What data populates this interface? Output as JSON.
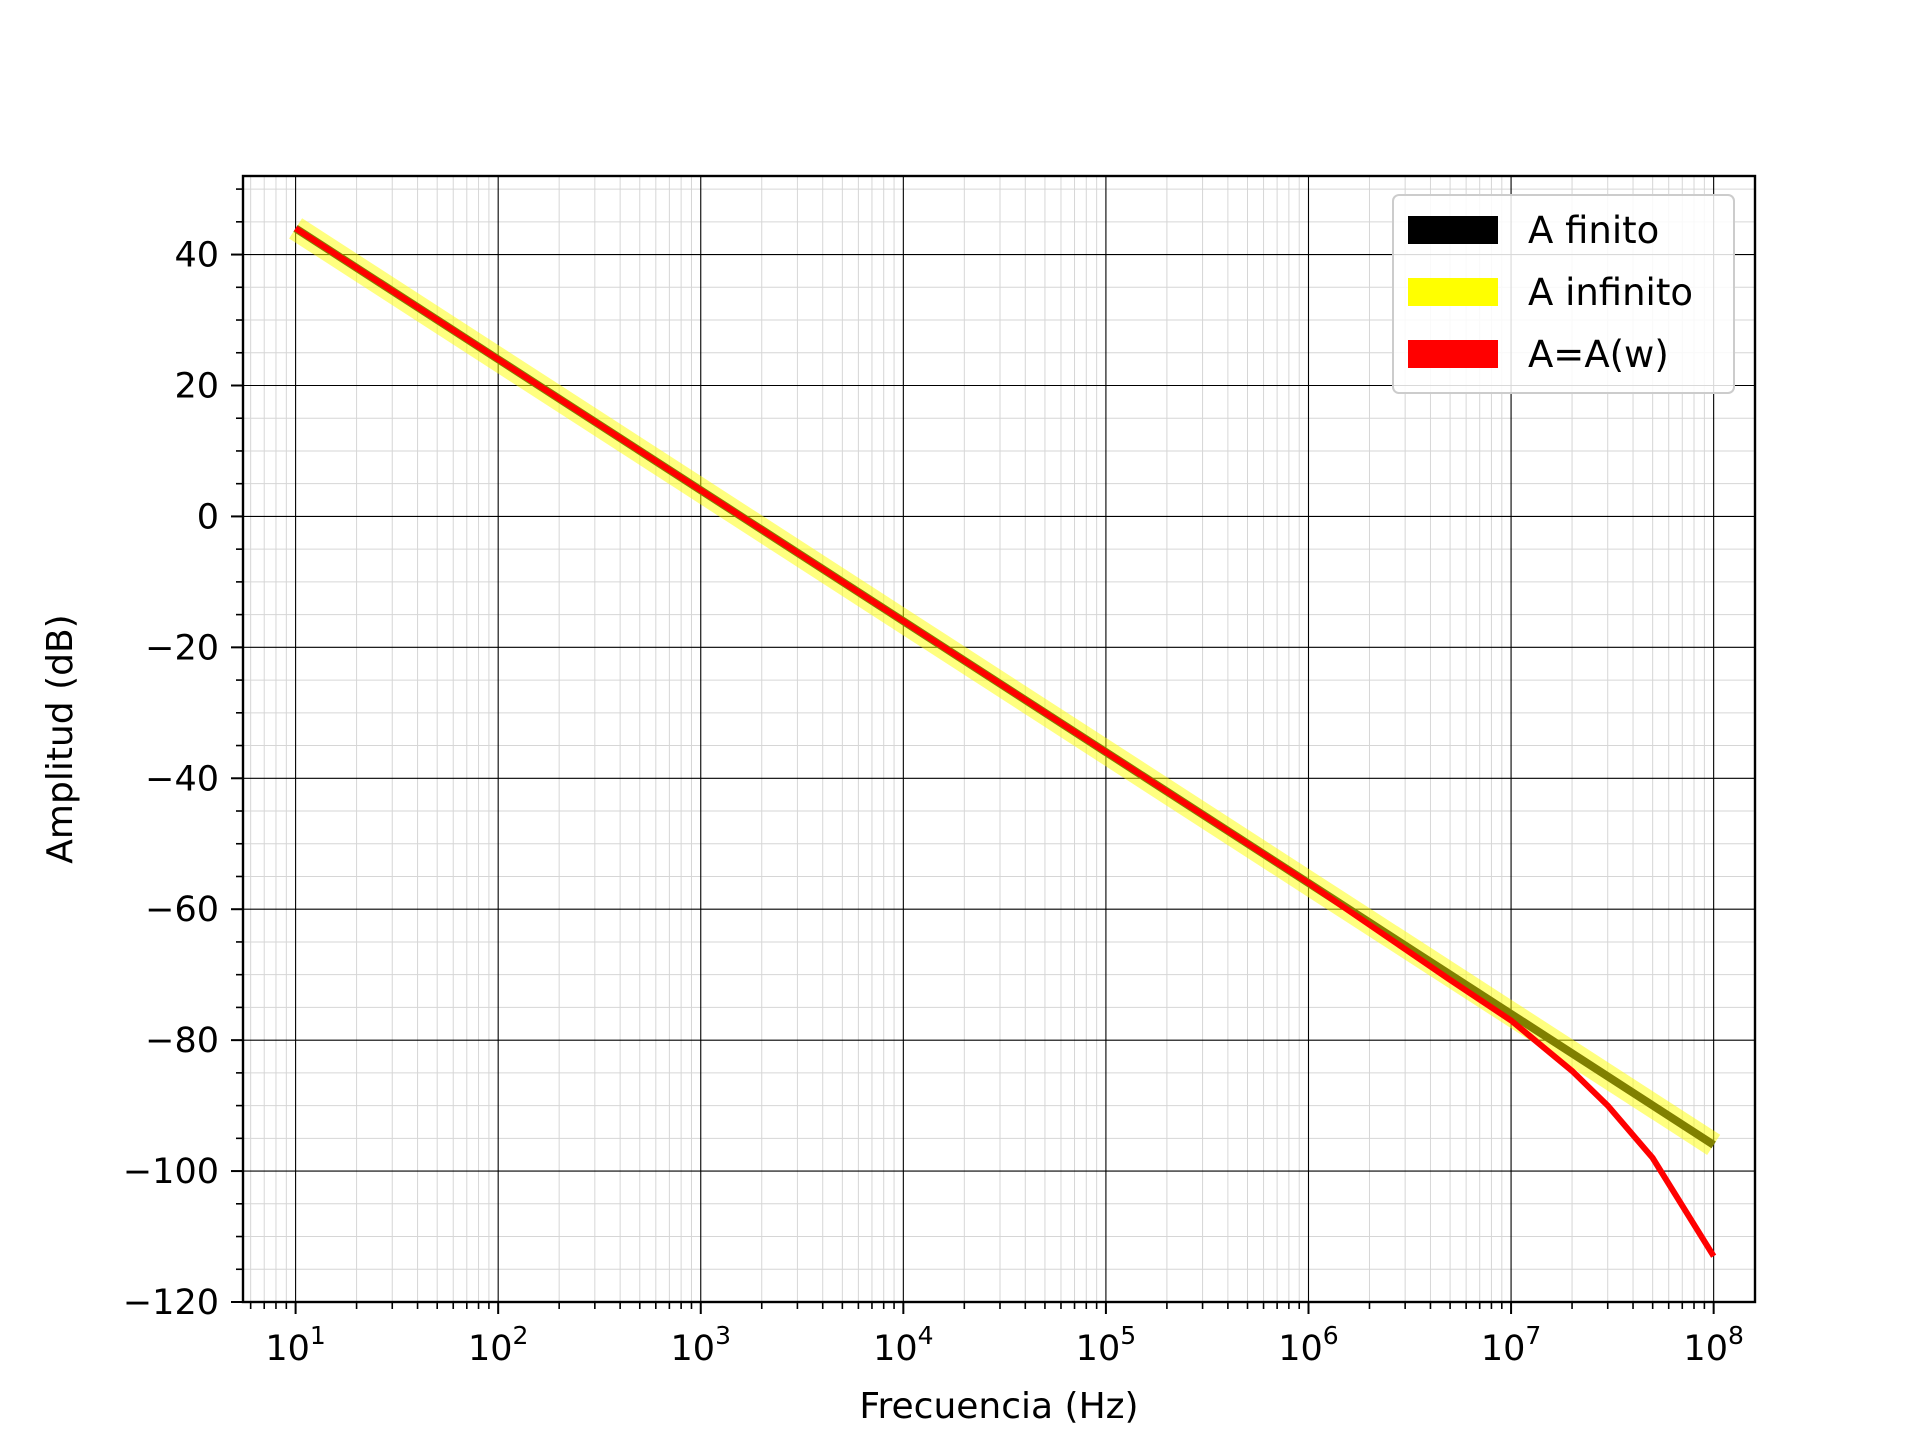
{
  "chart_data": {
    "type": "line",
    "title": "",
    "xlabel": "Frecuencia (Hz)",
    "ylabel": "Amplitud (dB)",
    "xscale": "log",
    "xlim": [
      5.5,
      160000000
    ],
    "ylim": [
      -120,
      52
    ],
    "grid": "major and minor",
    "legend_position": "top-right",
    "x_ticks": [
      {
        "value": 10,
        "base": "10",
        "exp": "1"
      },
      {
        "value": 100,
        "base": "10",
        "exp": "2"
      },
      {
        "value": 1000,
        "base": "10",
        "exp": "3"
      },
      {
        "value": 10000,
        "base": "10",
        "exp": "4"
      },
      {
        "value": 100000,
        "base": "10",
        "exp": "5"
      },
      {
        "value": 1000000,
        "base": "10",
        "exp": "6"
      },
      {
        "value": 10000000,
        "base": "10",
        "exp": "7"
      },
      {
        "value": 100000000,
        "base": "10",
        "exp": "8"
      }
    ],
    "y_ticks": [
      {
        "value": 40,
        "label": "40"
      },
      {
        "value": 20,
        "label": "20"
      },
      {
        "value": 0,
        "label": "0"
      },
      {
        "value": -20,
        "label": "−20"
      },
      {
        "value": -40,
        "label": "−40"
      },
      {
        "value": -60,
        "label": "−60"
      },
      {
        "value": -80,
        "label": "−80"
      },
      {
        "value": -100,
        "label": "−100"
      },
      {
        "value": -120,
        "label": "−120"
      }
    ],
    "series": [
      {
        "name": "A finito",
        "color": "#000000",
        "x": [
          10,
          100,
          1000,
          10000,
          100000,
          1000000,
          10000000,
          100000000
        ],
        "y": [
          44,
          24,
          4,
          -16,
          -36,
          -56,
          -76,
          -96
        ]
      },
      {
        "name": "A infinito",
        "color": "#ffff00",
        "x": [
          10,
          100,
          1000,
          10000,
          100000,
          1000000,
          10000000,
          100000000
        ],
        "y": [
          44,
          24,
          4,
          -16,
          -36,
          -56,
          -76,
          -96
        ]
      },
      {
        "name": "A=A(w)",
        "color": "#ff0000",
        "x": [
          10,
          100,
          1000,
          10000,
          100000,
          1000000,
          3000000,
          5000000,
          10000000,
          20000000,
          30000000,
          50000000,
          100000000
        ],
        "y": [
          44,
          24,
          4,
          -16,
          -36,
          -56,
          -66.1,
          -70.8,
          -77,
          -84.7,
          -90,
          -98,
          -113
        ]
      }
    ]
  }
}
